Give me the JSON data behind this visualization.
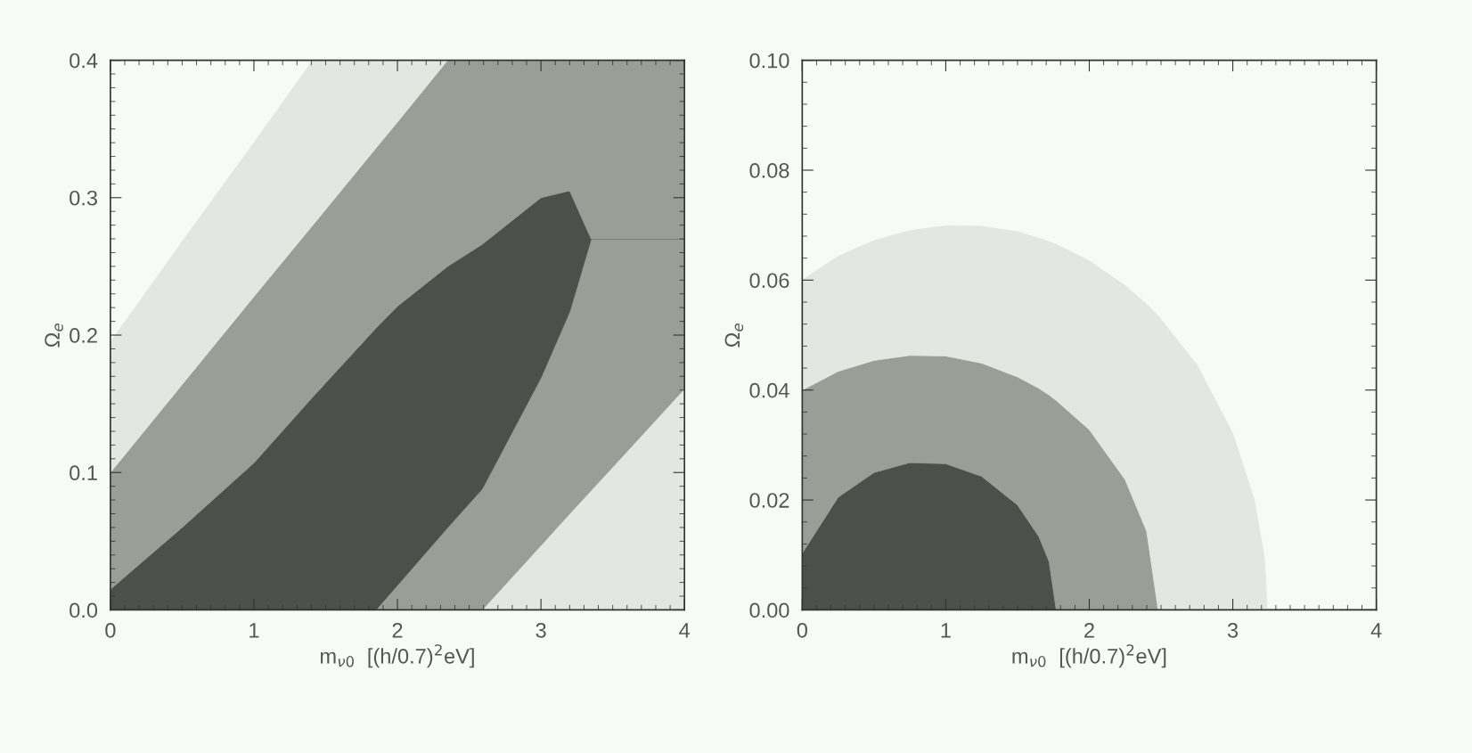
{
  "chart_data": [
    {
      "type": "area",
      "stacked": true,
      "xlabel": "m$_{ν0}$  [(h/0.7)$^{2}$eV]",
      "ylabel": "Ω$_{e}$",
      "x": [
        0,
        0.5,
        1,
        1.41,
        1.85,
        2,
        2.35,
        2.59,
        3,
        3.2,
        3.35,
        3.5,
        4
      ],
      "series": [
        {
          "color": "#e3e7e1",
          "values": [
            0,
            0,
            0,
            0,
            0,
            0,
            0,
            0,
            0.047,
            0.07,
            0.087,
            0.104,
            0.161
          ]
        },
        {
          "color": "#999e97",
          "values": [
            0,
            0,
            0,
            0,
            0,
            0.018,
            0.06,
            0.088,
            0.122,
            0.147,
            0.183,
            0.166,
            0.109
          ]
        },
        {
          "color": "#4b514a",
          "values": [
            0.015,
            0.06,
            0.107,
            0.155,
            0.205,
            0.203,
            0.19,
            0.178,
            0.131,
            0.088,
            0,
            0,
            0
          ]
        },
        {
          "color": "#999e97",
          "values": [
            0.085,
            0.104,
            0.121,
            0.125,
            0.131,
            0.134,
            0.15,
            0.134,
            0.1,
            0.095,
            0.13,
            0.13,
            0.13
          ]
        },
        {
          "color": "#e3e7e1",
          "values": [
            0.095,
            0.104,
            0.112,
            0.12,
            0.064,
            0.045,
            0,
            0,
            0,
            0,
            0,
            0,
            0
          ]
        }
      ],
      "xlim": [
        0,
        4
      ],
      "ylim": [
        0,
        0.4
      ],
      "xticks": [
        0,
        1,
        2,
        3,
        4
      ],
      "yticks": [
        {
          "value": 0,
          "label": "0.0"
        },
        0.1,
        0.2,
        0.3,
        0.4
      ],
      "grid": false
    },
    {
      "type": "area",
      "stacked": true,
      "xlabel": "m$_{ν0}$  [(h/0.7)$^{2}$eV]",
      "ylabel": "Ω$_{e}$",
      "x": [
        0,
        0.25,
        0.5,
        0.75,
        1,
        1.25,
        1.5,
        1.65,
        1.72,
        1.77,
        2,
        2.25,
        2.4,
        2.48,
        2.75,
        3,
        3.15,
        3.22,
        3.24,
        4
      ],
      "series": [
        {
          "color": "#4b514a",
          "values": [
            0.0103,
            0.0205,
            0.025,
            0.0268,
            0.0266,
            0.0243,
            0.0191,
            0.0133,
            0.0088,
            0,
            0,
            0,
            0,
            0,
            0,
            0,
            0,
            0,
            0,
            0
          ]
        },
        {
          "color": "#999e97",
          "values": [
            0.0297,
            0.0229,
            0.0204,
            0.0195,
            0.0196,
            0.0206,
            0.0233,
            0.027,
            0.0303,
            0.0381,
            0.0328,
            0.0237,
            0.0143,
            0,
            0,
            0,
            0,
            0,
            0,
            0
          ]
        },
        {
          "color": "#e3e7e1",
          "values": [
            0.02,
            0.0209,
            0.0218,
            0.0227,
            0.0237,
            0.0249,
            0.0264,
            0.0273,
            0.0279,
            0.0284,
            0.0307,
            0.0353,
            0.0413,
            0.0535,
            0.0446,
            0.0321,
            0.02,
            0.0096,
            0,
            0
          ]
        }
      ],
      "xlim": [
        0,
        4
      ],
      "ylim": [
        0,
        0.1
      ],
      "xticks": [
        0,
        1,
        2,
        3,
        4
      ],
      "yticks": [
        {
          "value": 0,
          "label": "0.00"
        },
        {
          "value": 0.02,
          "label": "0.02"
        },
        {
          "value": 0.04,
          "label": "0.04"
        },
        {
          "value": 0.06,
          "label": "0.06"
        },
        {
          "value": 0.08,
          "label": "0.08"
        },
        {
          "value": 0.1,
          "label": "0.10"
        }
      ],
      "grid": false
    }
  ]
}
